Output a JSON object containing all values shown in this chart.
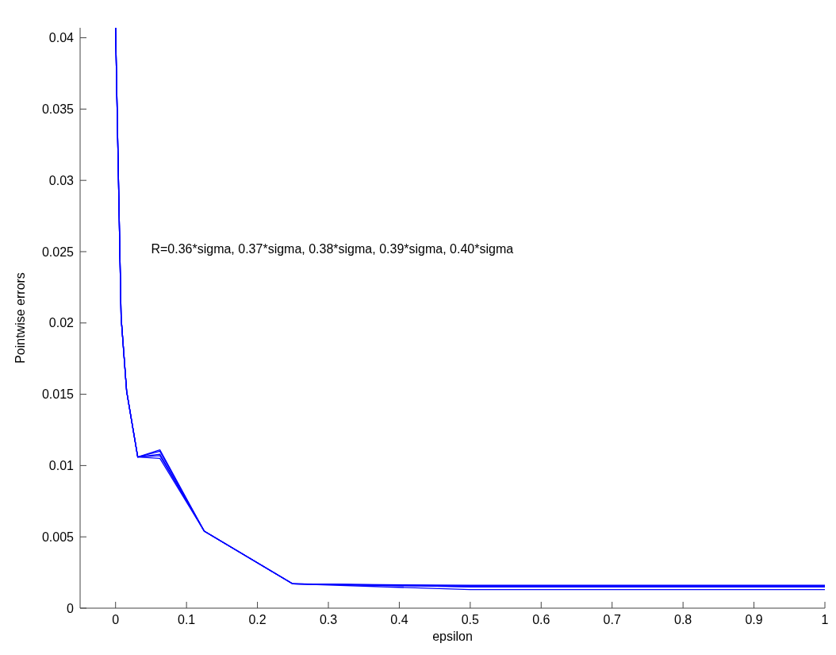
{
  "chart_data": {
    "type": "line",
    "xlabel": "epsilon",
    "ylabel": "Pointwise errors",
    "annotations": [
      "R=0.36*sigma, 0.37*sigma, 0.38*sigma, 0.39*sigma, 0.40*sigma"
    ],
    "x": [
      0,
      0.0078125,
      0.015625,
      0.03125,
      0.0625,
      0.125,
      0.25,
      0.5,
      1
    ],
    "series": [
      {
        "color": "#0000ff",
        "values": [
          0.0407,
          0.0204,
          0.0152,
          0.0106,
          0.0111,
          0.0054,
          0.0017,
          0.0016,
          0.0016
        ]
      },
      {
        "color": "#0000ff",
        "values": [
          0.0407,
          0.0204,
          0.0152,
          0.0106,
          0.011,
          0.0054,
          0.0017,
          0.00155,
          0.00155
        ]
      },
      {
        "color": "#0000ff",
        "values": [
          0.0407,
          0.0204,
          0.0152,
          0.0106,
          0.0108,
          0.0054,
          0.0017,
          0.0015,
          0.0015
        ]
      },
      {
        "color": "#0000ff",
        "values": [
          0.0407,
          0.0204,
          0.0152,
          0.0106,
          0.0107,
          0.0054,
          0.0017,
          0.0015,
          0.0015
        ]
      },
      {
        "color": "#0000ff",
        "values": [
          0.0407,
          0.0204,
          0.0152,
          0.0106,
          0.0105,
          0.0054,
          0.0017,
          0.0013,
          0.0013
        ]
      }
    ],
    "xlim": [
      -0.05,
      1
    ],
    "ylim": [
      0,
      0.0407
    ],
    "xticks": [
      0,
      0.1,
      0.2,
      0.3,
      0.4,
      0.5,
      0.6,
      0.7,
      0.8,
      0.9,
      1
    ],
    "yticks": [
      0,
      0.005,
      0.01,
      0.015,
      0.02,
      0.025,
      0.03,
      0.035,
      0.04
    ],
    "grid": false,
    "marker": "none",
    "line_style": "solid"
  }
}
